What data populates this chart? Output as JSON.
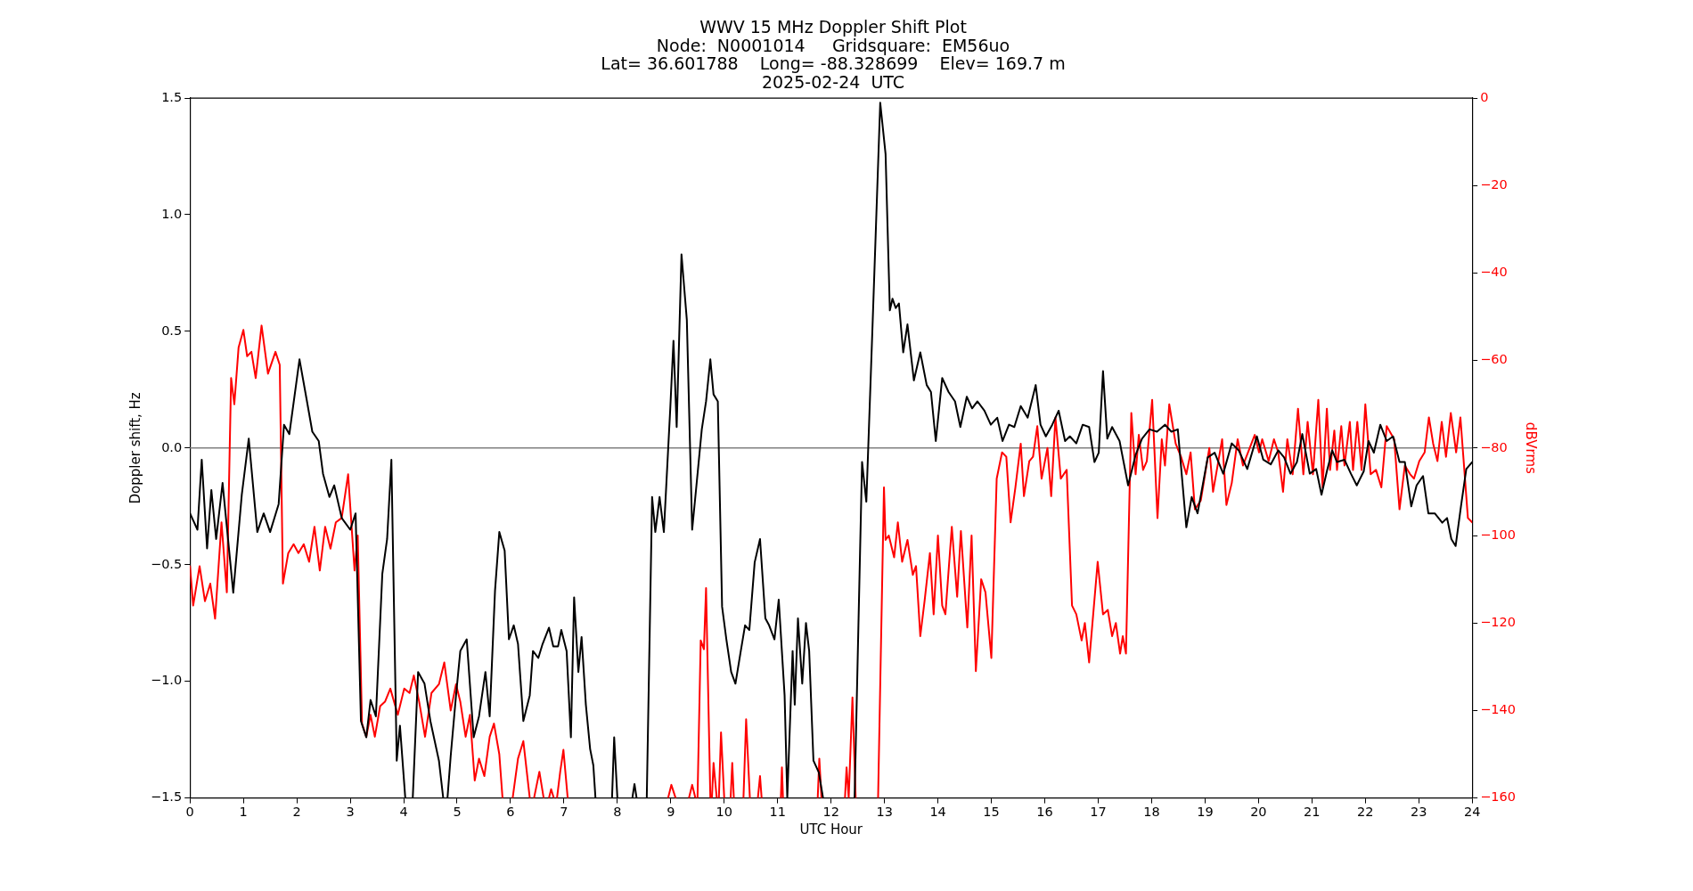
{
  "chart_data": {
    "type": "line",
    "title": "WWV 15 MHz Doppler Shift Plot\nNode:  N0001014     Gridsquare:  EM56uo\nLat= 36.601788    Long= -88.328699    Elev= 169.7 m\n2025-02-24  UTC",
    "xlabel": "UTC Hour",
    "ylabel": "Doppler shift, Hz",
    "y2label": "dBVrms",
    "grid": false,
    "legend": false,
    "marker": "none",
    "line_style": "solid",
    "xlim": [
      0,
      24
    ],
    "xticks": [
      0,
      1,
      2,
      3,
      4,
      5,
      6,
      7,
      8,
      9,
      10,
      11,
      12,
      13,
      14,
      15,
      16,
      17,
      18,
      19,
      20,
      21,
      22,
      23,
      24
    ],
    "ylim": [
      -1.5,
      1.5
    ],
    "yticks": [
      {
        "value": -1.5,
        "label": "−1.5"
      },
      {
        "value": -1,
        "label": "−1.0"
      },
      {
        "value": -0.5,
        "label": "−0.5"
      },
      {
        "value": 0,
        "label": "0.0"
      },
      {
        "value": 0.5,
        "label": "0.5"
      },
      {
        "value": 1,
        "label": "1.0"
      },
      {
        "value": 1.5,
        "label": "1.5"
      }
    ],
    "y2lim": [
      -160,
      0
    ],
    "y2ticks": [
      {
        "value": -160,
        "label": "−160"
      },
      {
        "value": -140,
        "label": "−140"
      },
      {
        "value": -120,
        "label": "−120"
      },
      {
        "value": -100,
        "label": "−100"
      },
      {
        "value": -80,
        "label": "−80"
      },
      {
        "value": -60,
        "label": "−60"
      },
      {
        "value": -40,
        "label": "−40"
      },
      {
        "value": -20,
        "label": "−20"
      },
      0
    ],
    "ref_lines": [
      {
        "axis": "y",
        "value": 0,
        "color": "#808080"
      }
    ],
    "series": [
      {
        "color": "#000000",
        "x": [
          0,
          0.14,
          0.22,
          0.32,
          0.4,
          0.49,
          0.61,
          0.81,
          0.97,
          1.1,
          1.26,
          1.38,
          1.5,
          1.66,
          1.76,
          1.86,
          2.05,
          2.19,
          2.29,
          2.41,
          2.49,
          2.61,
          2.7,
          2.84,
          3.0,
          3.1,
          3.2,
          3.3,
          3.38,
          3.48,
          3.6,
          3.69,
          3.77,
          3.87,
          3.93,
          4.03,
          4.1,
          4.17,
          4.27,
          4.39,
          4.5,
          4.66,
          4.74,
          4.78,
          4.82,
          4.88,
          4.98,
          5.06,
          5.18,
          5.31,
          5.41,
          5.53,
          5.61,
          5.71,
          5.79,
          5.89,
          5.97,
          6.06,
          6.14,
          6.24,
          6.36,
          6.42,
          6.52,
          6.6,
          6.72,
          6.8,
          6.89,
          6.95,
          7.05,
          7.13,
          7.19,
          7.27,
          7.33,
          7.41,
          7.49,
          7.55,
          7.59,
          7.75,
          7.9,
          7.94,
          8.0,
          8.14,
          8.28,
          8.32,
          8.36,
          8.45,
          8.55,
          8.65,
          8.71,
          8.79,
          8.87,
          8.99,
          9.05,
          9.11,
          9.2,
          9.3,
          9.4,
          9.48,
          9.58,
          9.66,
          9.74,
          9.8,
          9.88,
          9.96,
          10.04,
          10.13,
          10.21,
          10.31,
          10.39,
          10.47,
          10.57,
          10.67,
          10.77,
          10.84,
          10.94,
          11.02,
          11.13,
          11.18,
          11.28,
          11.32,
          11.38,
          11.46,
          11.53,
          11.59,
          11.67,
          11.77,
          11.85,
          12.1,
          12.44,
          12.58,
          12.66,
          12.78,
          12.92,
          13.02,
          13.1,
          13.15,
          13.21,
          13.27,
          13.35,
          13.43,
          13.55,
          13.67,
          13.79,
          13.87,
          13.96,
          14.08,
          14.2,
          14.32,
          14.42,
          14.54,
          14.64,
          14.74,
          14.87,
          14.99,
          15.11,
          15.21,
          15.33,
          15.43,
          15.55,
          15.68,
          15.83,
          15.92,
          16.02,
          16.14,
          16.26,
          16.38,
          16.47,
          16.59,
          16.71,
          16.83,
          16.93,
          17.01,
          17.09,
          17.17,
          17.26,
          17.4,
          17.56,
          17.7,
          17.82,
          17.96,
          18.1,
          18.25,
          18.37,
          18.49,
          18.65,
          18.75,
          18.86,
          19.05,
          19.18,
          19.34,
          19.5,
          19.63,
          19.79,
          19.97,
          20.09,
          20.23,
          20.37,
          20.48,
          20.6,
          20.72,
          20.82,
          20.96,
          21.08,
          21.18,
          21.28,
          21.38,
          21.47,
          21.61,
          21.73,
          21.84,
          21.97,
          22.06,
          22.16,
          22.28,
          22.4,
          22.52,
          22.64,
          22.74,
          22.86,
          22.96,
          23.08,
          23.18,
          23.3,
          23.44,
          23.53,
          23.61,
          23.69,
          23.79,
          23.89,
          24
        ],
        "values": [
          -0.28,
          -0.35,
          -0.05,
          -0.43,
          -0.18,
          -0.39,
          -0.15,
          -0.62,
          -0.2,
          0.04,
          -0.36,
          -0.28,
          -0.36,
          -0.24,
          0.1,
          0.06,
          0.38,
          0.2,
          0.07,
          0.03,
          -0.11,
          -0.21,
          -0.16,
          -0.3,
          -0.35,
          -0.28,
          -1.17,
          -1.24,
          -1.08,
          -1.15,
          -0.54,
          -0.39,
          -0.05,
          -1.34,
          -1.19,
          -1.5,
          null,
          -1.5,
          -0.96,
          -1.01,
          -1.17,
          -1.34,
          -1.5,
          null,
          -1.5,
          -1.32,
          -1.06,
          -0.87,
          -0.82,
          -1.24,
          -1.15,
          -0.96,
          -1.15,
          -0.61,
          -0.36,
          -0.44,
          -0.82,
          -0.76,
          -0.84,
          -1.17,
          -1.06,
          -0.87,
          -0.9,
          -0.84,
          -0.77,
          -0.85,
          -0.85,
          -0.78,
          -0.87,
          -1.24,
          -0.64,
          -0.96,
          -0.81,
          -1.1,
          -1.29,
          -1.36,
          -1.5,
          null,
          -1.5,
          -1.24,
          -1.5,
          null,
          -1.5,
          -1.44,
          -1.5,
          null,
          -1.5,
          -0.21,
          -0.36,
          -0.21,
          -0.36,
          0.17,
          0.46,
          0.09,
          0.83,
          0.55,
          -0.35,
          -0.16,
          0.08,
          0.2,
          0.38,
          0.23,
          0.2,
          -0.68,
          -0.82,
          -0.96,
          -1.01,
          -0.87,
          -0.76,
          -0.78,
          -0.49,
          -0.39,
          -0.73,
          -0.76,
          -0.82,
          -0.65,
          -1.06,
          -1.5,
          -0.87,
          -1.1,
          -0.73,
          -1.01,
          -0.75,
          -0.87,
          -1.34,
          -1.39,
          -1.5,
          null,
          -1.5,
          -0.06,
          -0.23,
          0.55,
          1.48,
          1.26,
          0.59,
          0.64,
          0.6,
          0.62,
          0.41,
          0.53,
          0.29,
          0.41,
          0.27,
          0.24,
          0.03,
          0.3,
          0.24,
          0.2,
          0.09,
          0.22,
          0.17,
          0.2,
          0.16,
          0.1,
          0.13,
          0.03,
          0.1,
          0.09,
          0.18,
          0.13,
          0.27,
          0.1,
          0.05,
          0.1,
          0.16,
          0.03,
          0.05,
          0.02,
          0.1,
          0.09,
          -0.06,
          -0.02,
          0.33,
          0.04,
          0.09,
          0.03,
          -0.16,
          -0.03,
          0.04,
          0.08,
          0.07,
          0.1,
          0.07,
          0.08,
          -0.34,
          -0.21,
          -0.28,
          -0.04,
          -0.02,
          -0.11,
          0.02,
          -0.01,
          -0.09,
          0.05,
          -0.05,
          -0.07,
          -0.01,
          -0.04,
          -0.11,
          -0.06,
          0.06,
          -0.11,
          -0.09,
          -0.2,
          -0.1,
          -0.01,
          -0.06,
          -0.05,
          -0.11,
          -0.16,
          -0.1,
          0.03,
          -0.02,
          0.1,
          0.03,
          0.05,
          -0.06,
          -0.06,
          -0.25,
          -0.16,
          -0.12,
          -0.28,
          -0.28,
          -0.32,
          -0.3,
          -0.39,
          -0.42,
          -0.25,
          -0.09,
          -0.06
        ]
      },
      {
        "color": "#ff0000",
        "axis": "y2",
        "x": [
          0,
          0.06,
          0.18,
          0.28,
          0.38,
          0.47,
          0.59,
          0.69,
          0.77,
          0.83,
          0.91,
          1.0,
          1.07,
          1.15,
          1.23,
          1.34,
          1.46,
          1.6,
          1.68,
          1.74,
          1.84,
          1.94,
          2.03,
          2.13,
          2.23,
          2.33,
          2.43,
          2.53,
          2.63,
          2.73,
          2.84,
          2.96,
          3.08,
          3.14,
          3.22,
          3.3,
          3.38,
          3.46,
          3.56,
          3.65,
          3.75,
          3.89,
          4.01,
          4.11,
          4.19,
          4.29,
          4.4,
          4.52,
          4.66,
          4.76,
          4.88,
          4.98,
          5.06,
          5.16,
          5.24,
          5.33,
          5.41,
          5.51,
          5.61,
          5.69,
          5.79,
          5.85,
          5.95,
          6.04,
          6.14,
          6.24,
          6.36,
          6.4,
          6.44,
          6.54,
          6.62,
          6.67,
          6.72,
          6.76,
          6.81,
          6.84,
          6.87,
          6.93,
          6.99,
          7.07,
          8.0,
          8.95,
          9.01,
          9.09,
          9.2,
          9.34,
          9.4,
          9.46,
          9.48,
          9.5,
          9.56,
          9.62,
          9.66,
          9.74,
          9.76,
          9.77,
          9.8,
          9.86,
          9.88,
          9.9,
          9.94,
          10.0,
          10.06,
          10.12,
          10.15,
          10.18,
          10.27,
          10.36,
          10.41,
          10.48,
          10.55,
          10.63,
          10.67,
          10.7,
          10.9,
          11.06,
          11.08,
          11.1,
          11.4,
          11.75,
          11.78,
          11.82,
          12.0,
          12.26,
          12.29,
          12.33,
          12.4,
          12.46,
          12.7,
          12.88,
          12.99,
          13.02,
          13.08,
          13.18,
          13.25,
          13.33,
          13.43,
          13.53,
          13.59,
          13.67,
          13.75,
          13.85,
          13.92,
          14.0,
          14.08,
          14.14,
          14.26,
          14.36,
          14.43,
          14.55,
          14.63,
          14.71,
          14.81,
          14.89,
          15.0,
          15.1,
          15.2,
          15.28,
          15.36,
          15.45,
          15.55,
          15.61,
          15.71,
          15.78,
          15.86,
          15.94,
          16.05,
          16.12,
          16.2,
          16.3,
          16.41,
          16.51,
          16.59,
          16.69,
          16.75,
          16.83,
          16.99,
          17.09,
          17.18,
          17.26,
          17.33,
          17.41,
          17.46,
          17.52,
          17.62,
          17.7,
          17.76,
          17.84,
          17.91,
          18.01,
          18.11,
          18.19,
          18.25,
          18.33,
          18.45,
          18.55,
          18.65,
          18.73,
          18.81,
          18.92,
          19.08,
          19.15,
          19.32,
          19.4,
          19.5,
          19.61,
          19.71,
          19.93,
          20.01,
          20.07,
          20.19,
          20.29,
          20.37,
          20.46,
          20.54,
          20.64,
          20.74,
          20.84,
          20.92,
          21.02,
          21.12,
          21.2,
          21.28,
          21.34,
          21.42,
          21.47,
          21.55,
          21.61,
          21.71,
          21.77,
          21.85,
          21.93,
          22.0,
          22.1,
          22.2,
          22.3,
          22.4,
          22.54,
          22.64,
          22.74,
          22.84,
          22.91,
          23.01,
          23.11,
          23.19,
          23.27,
          23.35,
          23.43,
          23.51,
          23.6,
          23.7,
          23.78,
          23.92,
          24
        ],
        "values": [
          -107,
          -116,
          -107,
          -115,
          -111,
          -119,
          -97,
          -113,
          -64,
          -70,
          -57,
          -53,
          -59,
          -58,
          -64,
          -52,
          -63,
          -58,
          -61,
          -111,
          -104,
          -102,
          -104,
          -102,
          -106,
          -98,
          -108,
          -98,
          -103,
          -97,
          -96,
          -86,
          -108,
          -100,
          -143,
          -146,
          -141,
          -146,
          -139,
          -138,
          -135,
          -141,
          -135,
          -136,
          -132,
          -138,
          -146,
          -136,
          -134,
          -129,
          -140,
          -134,
          -138,
          -146,
          -141,
          -156,
          -151,
          -155,
          -146,
          -143,
          -150,
          -160,
          null,
          -160,
          -151,
          -147,
          -160,
          null,
          -160,
          -154,
          -160,
          null,
          -160,
          -158,
          -160,
          null,
          -160,
          -154,
          -149,
          -160,
          null,
          -160,
          -157,
          -160,
          null,
          -160,
          -157,
          -160,
          null,
          -160,
          -124,
          -126,
          -112,
          -160,
          null,
          -160,
          -152,
          -160,
          null,
          -160,
          -145,
          -160,
          null,
          -160,
          -152,
          -160,
          null,
          -160,
          -142,
          -160,
          null,
          -160,
          -155,
          -160,
          null,
          -160,
          -153,
          -160,
          null,
          -160,
          -151,
          -160,
          null,
          -160,
          -153,
          -160,
          -137,
          -160,
          null,
          -160,
          -89,
          -101,
          -100,
          -105,
          -97,
          -106,
          -101,
          -109,
          -107,
          -123,
          -115,
          -104,
          -118,
          -100,
          -116,
          -118,
          -98,
          -114,
          -99,
          -121,
          -100,
          -131,
          -110,
          -113,
          -128,
          -87,
          -81,
          -82,
          -97,
          -89,
          -79,
          -91,
          -83,
          -82,
          -75,
          -87,
          -80,
          -91,
          -73,
          -87,
          -85,
          -116,
          -118,
          -124,
          -120,
          -129,
          -106,
          -118,
          -117,
          -123,
          -120,
          -127,
          -123,
          -127,
          -72,
          -86,
          -77,
          -85,
          -83,
          -69,
          -96,
          -78,
          -84,
          -70,
          -79,
          -82,
          -86,
          -81,
          -94,
          -92,
          -80,
          -90,
          -78,
          -93,
          -88,
          -78,
          -84,
          -77,
          -81,
          -78,
          -83,
          -78,
          -81,
          -90,
          -78,
          -86,
          -71,
          -86,
          -74,
          -86,
          -69,
          -89,
          -71,
          -85,
          -76,
          -85,
          -75,
          -84,
          -74,
          -85,
          -74,
          -85,
          -70,
          -86,
          -85,
          -89,
          -75,
          -78,
          -94,
          -84,
          -86,
          -87,
          -83,
          -81,
          -73,
          -79,
          -83,
          -74,
          -82,
          -72,
          -81,
          -73,
          -96,
          -97
        ]
      }
    ]
  }
}
